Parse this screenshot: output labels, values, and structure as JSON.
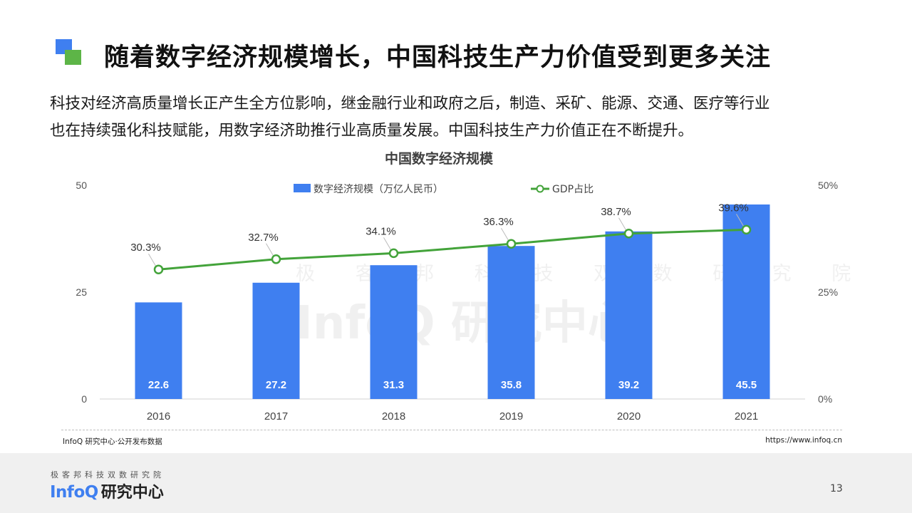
{
  "header": {
    "title": "随着数字经济规模增长，中国科技生产力价值受到更多关注"
  },
  "intro": {
    "line1": "科技对经济高质量增长正产生全方位影响，继金融行业和政府之后，制造、采矿、能源、交通、医疗等行业",
    "line2": "也在持续强化科技赋能，用数字经济助推行业高质量发展。中国科技生产力价值正在不断提升。"
  },
  "colors": {
    "bar": "#3f7ff0",
    "line": "#43a33a",
    "accent_green": "#5db547",
    "accent_blue": "#3f7ff0"
  },
  "chart_data": {
    "type": "bar",
    "title": "中国数字经济规模",
    "categories": [
      "2016",
      "2017",
      "2018",
      "2019",
      "2020",
      "2021"
    ],
    "series": [
      {
        "name": "数字经济规模（万亿人民币）",
        "type": "bar",
        "axis": "left",
        "values": [
          22.6,
          27.2,
          31.3,
          35.8,
          39.2,
          45.5
        ],
        "labels": [
          "22.6",
          "27.2",
          "31.3",
          "35.8",
          "39.2",
          "45.5"
        ]
      },
      {
        "name": "GDP占比",
        "type": "line",
        "axis": "right",
        "values": [
          30.3,
          32.7,
          34.1,
          36.3,
          38.7,
          39.6
        ],
        "labels": [
          "30.3%",
          "32.7%",
          "34.1%",
          "36.3%",
          "38.7%",
          "39.6%"
        ]
      }
    ],
    "y_left": {
      "range": [
        0,
        50
      ],
      "ticks": [
        "0",
        "25",
        "50"
      ]
    },
    "y_right": {
      "range": [
        0,
        50
      ],
      "ticks": [
        "0%",
        "25%",
        "50%"
      ]
    },
    "legend": "top-center",
    "grid": false
  },
  "source": {
    "left": "InfoQ 研究中心·公开发布数据",
    "right": "https://www.infoq.cn"
  },
  "watermark": {
    "tagline": "极 客 邦 科 技 双 数 研 究 院",
    "logo": "InfoQ 研究中心"
  },
  "footer": {
    "tagline": "极客邦科技双数研究院",
    "logo_en": "InfoQ",
    "logo_cn": "研究中心",
    "page_number": "13"
  }
}
